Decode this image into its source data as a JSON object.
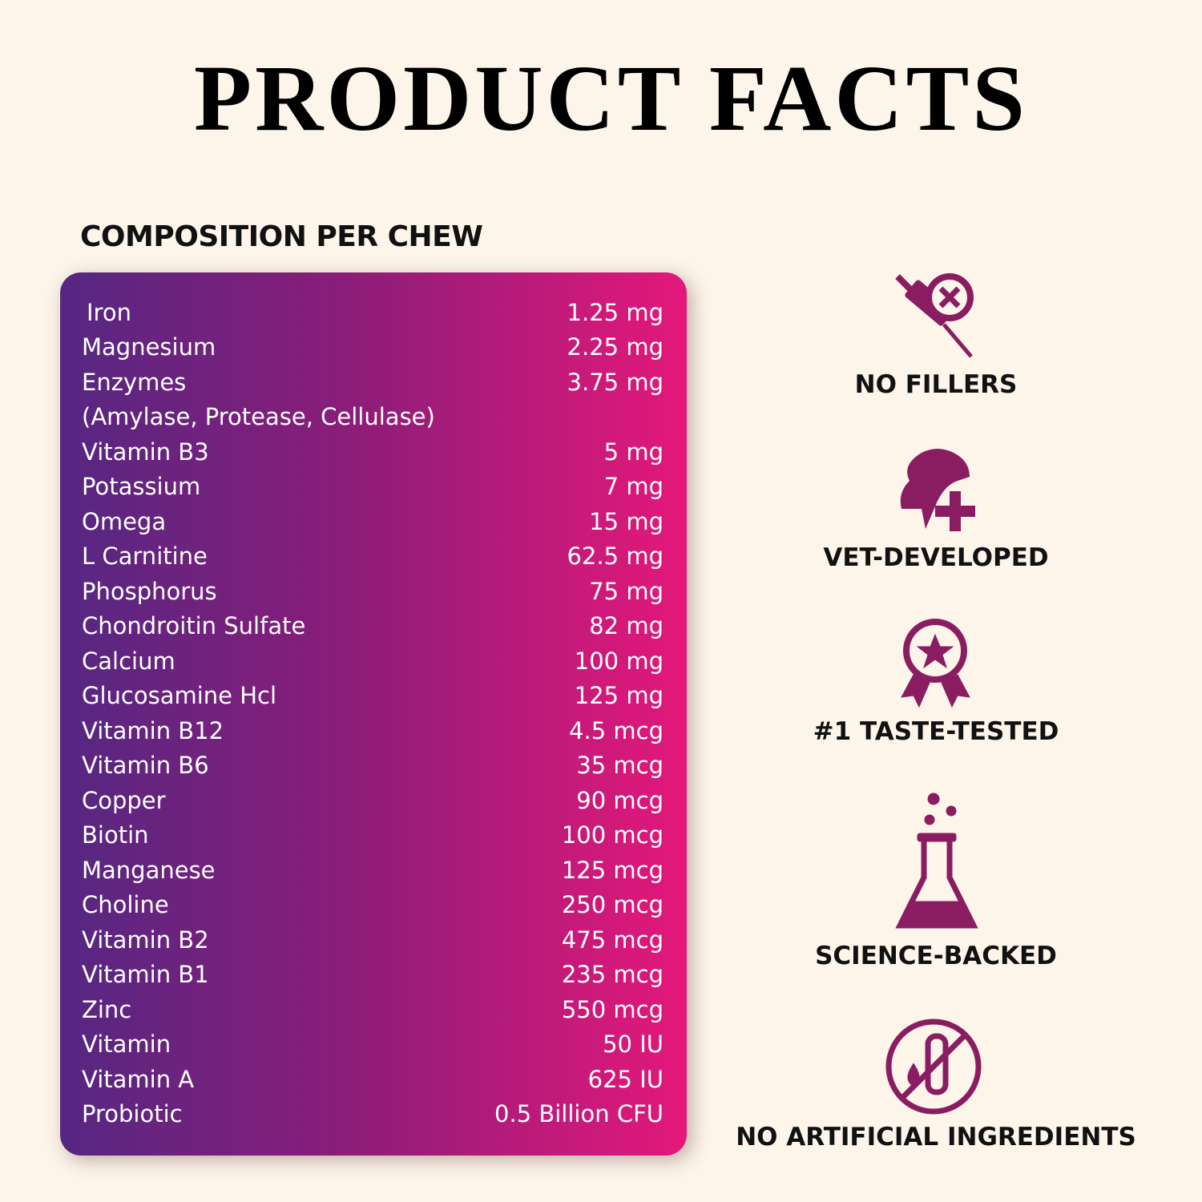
{
  "header": {
    "title": "PRODUCT FACTS"
  },
  "composition": {
    "heading": "COMPOSITION PER CHEW",
    "rows": [
      {
        "name": "Iron",
        "amount": "1.25 mg"
      },
      {
        "name": "Magnesium",
        "amount": "2.25 mg"
      },
      {
        "name": "Enzymes",
        "amount": "3.75 mg"
      },
      {
        "name": "(Amylase, Protease, Cellulase)"
      },
      {
        "name": "Vitamin B3",
        "amount": "5 mg"
      },
      {
        "name": "Potassium",
        "amount": "7 mg"
      },
      {
        "name": "Omega",
        "amount": "15 mg"
      },
      {
        "name": "L Carnitine",
        "amount": "62.5 mg"
      },
      {
        "name": "Phosphorus",
        "amount": "75 mg"
      },
      {
        "name": "Chondroitin Sulfate",
        "amount": "82 mg"
      },
      {
        "name": "Calcium",
        "amount": "100 mg"
      },
      {
        "name": "Glucosamine Hcl",
        "amount": "125 mg"
      },
      {
        "name": "Vitamin B12",
        "amount": "4.5 mcg"
      },
      {
        "name": "Vitamin B6",
        "amount": "35 mcg"
      },
      {
        "name": "Copper",
        "amount": "90 mcg"
      },
      {
        "name": "Biotin",
        "amount": "100 mcg"
      },
      {
        "name": "Manganese",
        "amount": "125 mcg"
      },
      {
        "name": "Choline",
        "amount": "250 mcg"
      },
      {
        "name": "Vitamin B2",
        "amount": "475 mcg"
      },
      {
        "name": "Vitamin B1",
        "amount": "235 mcg"
      },
      {
        "name": "Zinc",
        "amount": "550 mcg"
      },
      {
        "name": "Vitamin",
        "amount": "50 IU"
      },
      {
        "name": "Vitamin A",
        "amount": "625 IU"
      },
      {
        "name": "Probiotic",
        "amount": "0.5 Billion CFU"
      }
    ]
  },
  "features": [
    {
      "label": "NO FILLERS"
    },
    {
      "label": "VET-DEVELOPED"
    },
    {
      "label": "#1 TASTE-TESTED"
    },
    {
      "label": "SCIENCE-BACKED"
    },
    {
      "label": "NO ARTIFICIAL INGREDIENTS"
    }
  ]
}
